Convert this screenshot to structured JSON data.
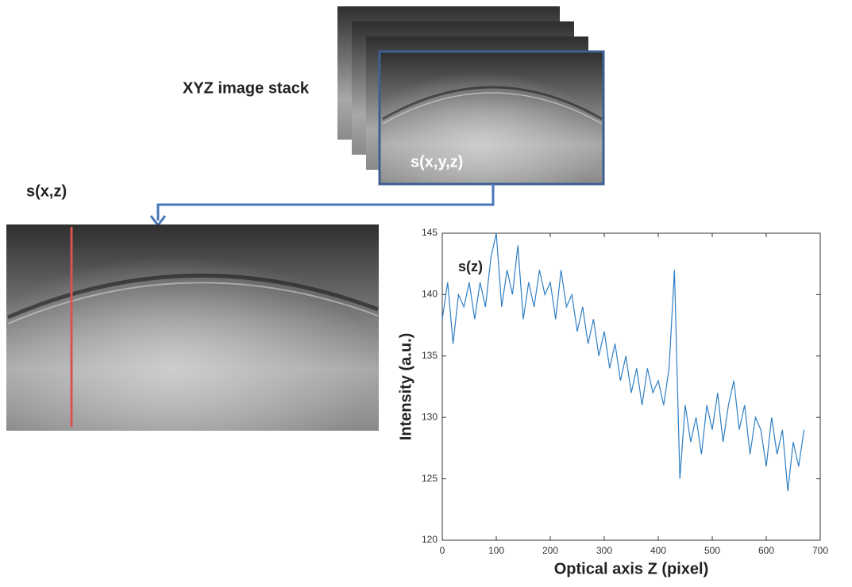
{
  "figure": {
    "stack_label": "XYZ image stack",
    "front_label": "s(x,y,z)",
    "slice_label": "s(x,z)"
  },
  "chart_data": {
    "type": "line",
    "annotation": "s(z)",
    "xlabel": "Optical axis Z (pixel)",
    "ylabel": "Intensity (a.u.)",
    "x": [
      0,
      10,
      20,
      30,
      40,
      50,
      60,
      70,
      80,
      90,
      100,
      110,
      120,
      130,
      140,
      150,
      160,
      170,
      180,
      190,
      200,
      210,
      220,
      230,
      240,
      250,
      260,
      270,
      280,
      290,
      300,
      310,
      320,
      330,
      340,
      350,
      360,
      370,
      380,
      390,
      400,
      410,
      420,
      430,
      440,
      450,
      460,
      470,
      480,
      490,
      500,
      510,
      520,
      530,
      540,
      550,
      560,
      570,
      580,
      590,
      600,
      610,
      620,
      630,
      640,
      650,
      660,
      670
    ],
    "series": [
      {
        "name": "s(z)",
        "color": "#2f7fc4",
        "values": [
          138,
          141,
          136,
          140,
          139,
          141,
          138,
          141,
          139,
          143,
          145,
          139,
          142,
          140,
          144,
          138,
          141,
          139,
          142,
          140,
          141,
          138,
          142,
          139,
          140,
          137,
          139,
          136,
          138,
          135,
          137,
          134,
          136,
          133,
          135,
          132,
          134,
          131,
          134,
          132,
          133,
          131,
          134,
          142,
          125,
          131,
          128,
          130,
          127,
          131,
          129,
          132,
          128,
          131,
          133,
          129,
          131,
          127,
          130,
          129,
          126,
          130,
          127,
          129,
          124,
          128,
          126,
          129
        ]
      }
    ],
    "xlim": [
      0,
      700
    ],
    "xticks": [
      0,
      100,
      200,
      300,
      400,
      500,
      600,
      700
    ],
    "ylim": [
      120,
      145
    ],
    "yticks": [
      120,
      125,
      130,
      135,
      140,
      145
    ],
    "grid": false
  }
}
